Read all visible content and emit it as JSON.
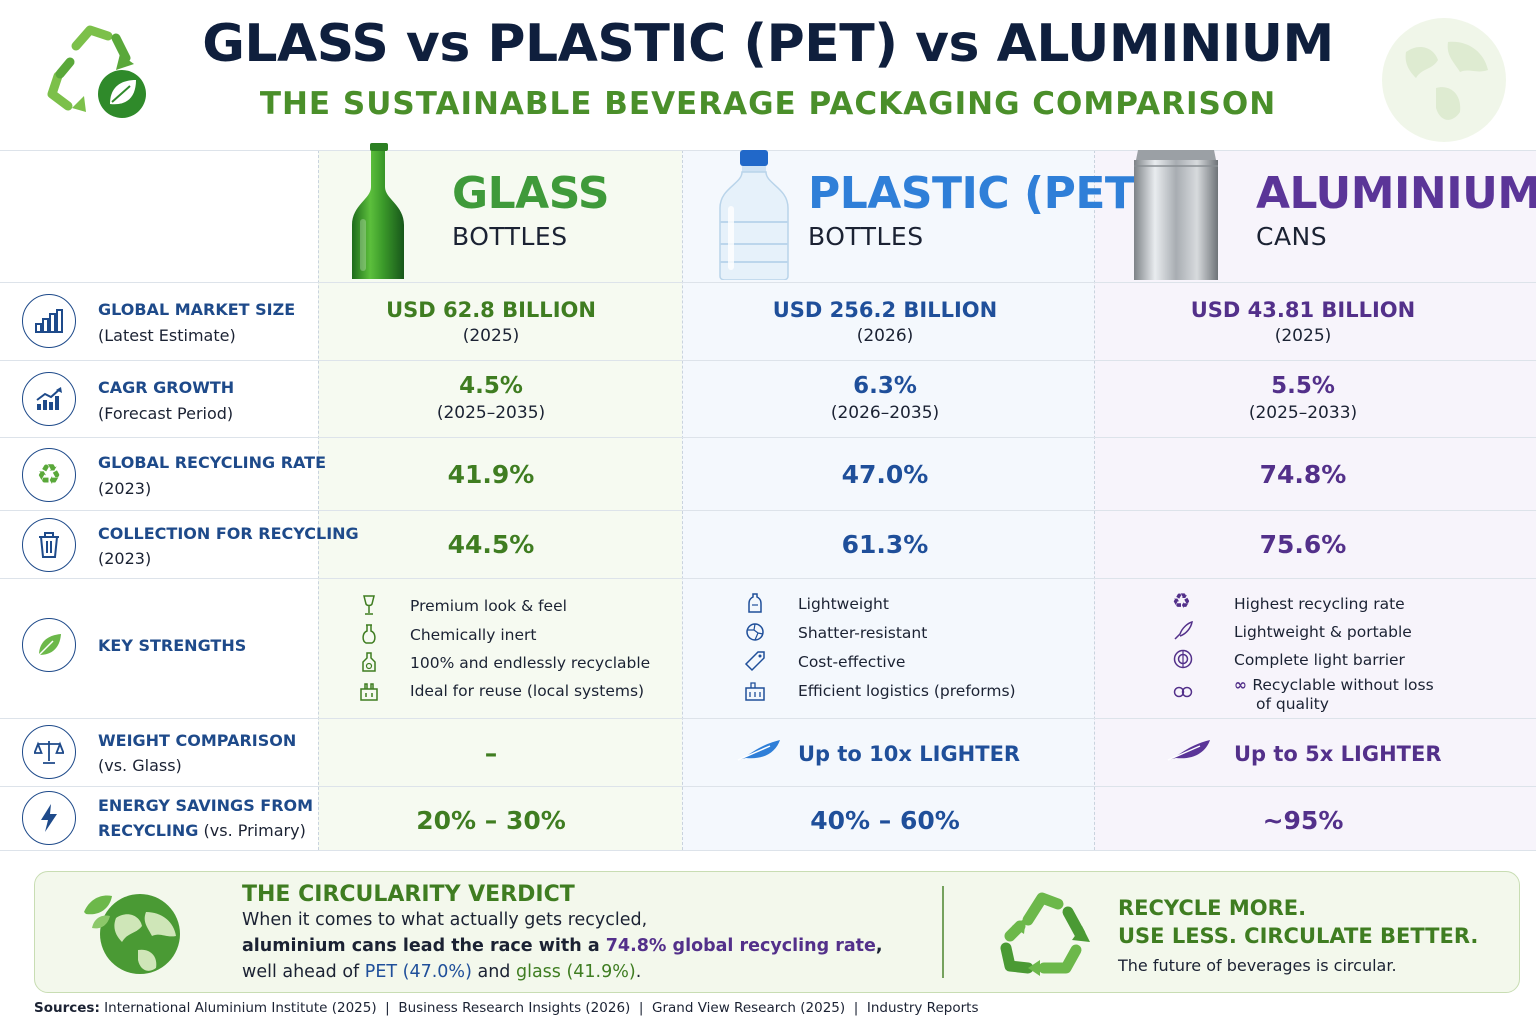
{
  "header": {
    "title": "GLASS vs PLASTIC (PET) vs ALUMINIUM",
    "subtitle": "THE SUSTAINABLE BEVERAGE PACKAGING COMPARISON"
  },
  "columns": {
    "glass": {
      "name": "GLASS",
      "type": "BOTTLES",
      "color": "#3f9a3a"
    },
    "pet": {
      "name": "PLASTIC (PET)",
      "type": "BOTTLES",
      "color": "#2f7fd8"
    },
    "alu": {
      "name": "ALUMINIUM",
      "type": "CANS",
      "color": "#5b3598"
    }
  },
  "rows": {
    "market": {
      "title": "GLOBAL MARKET SIZE",
      "sub": "(Latest Estimate)",
      "icon": "bar-chart-icon",
      "glass": {
        "value": "USD 62.8 BILLION",
        "sub": "(2025)"
      },
      "pet": {
        "value": "USD 256.2 BILLION",
        "sub": "(2026)"
      },
      "alu": {
        "value": "USD 43.81 BILLION",
        "sub": "(2025)"
      }
    },
    "cagr": {
      "title": "CAGR GROWTH",
      "sub": "(Forecast Period)",
      "icon": "growth-chart-icon",
      "glass": {
        "value": "4.5%",
        "sub": "(2025–2035)"
      },
      "pet": {
        "value": "6.3%",
        "sub": "(2026–2035)"
      },
      "alu": {
        "value": "5.5%",
        "sub": "(2025–2033)"
      }
    },
    "recycling": {
      "title": "GLOBAL RECYCLING RATE",
      "sub": "(2023)",
      "icon": "recycle-icon",
      "glass": {
        "value": "41.9%"
      },
      "pet": {
        "value": "47.0%"
      },
      "alu": {
        "value": "74.8%"
      }
    },
    "collection": {
      "title": "COLLECTION FOR RECYCLING",
      "sub": "(2023)",
      "icon": "bin-icon",
      "glass": {
        "value": "44.5%"
      },
      "pet": {
        "value": "61.3%"
      },
      "alu": {
        "value": "75.6%"
      }
    },
    "strengths": {
      "title": "KEY STRENGTHS",
      "icon": "leaf-icon",
      "glass": [
        "Premium look & feel",
        "Chemically inert",
        "100% and endlessly recyclable",
        "Ideal for reuse (local systems)"
      ],
      "pet": [
        "Lightweight",
        "Shatter-resistant",
        "Cost-effective",
        "Efficient logistics (preforms)"
      ],
      "alu": [
        "Highest recycling rate",
        "Lightweight & portable",
        "Complete light barrier",
        "Recyclable without loss",
        "of quality"
      ]
    },
    "weight": {
      "title": "WEIGHT COMPARISON",
      "sub": "(vs. Glass)",
      "icon": "scale-icon",
      "glass": {
        "value": "–"
      },
      "pet": {
        "value": "Up to 10x LIGHTER"
      },
      "alu": {
        "value": "Up to 5x LIGHTER"
      }
    },
    "energy": {
      "title": "ENERGY SAVINGS FROM",
      "sub_bold": "RECYCLING",
      "sub": "(vs. Primary)",
      "icon": "lightning-icon",
      "glass": {
        "value": "20% – 30%"
      },
      "pet": {
        "value": "40% – 60%"
      },
      "alu": {
        "value": "~95%"
      }
    }
  },
  "verdict": {
    "title": "THE CIRCULARITY VERDICT",
    "line1": "When it comes to what actually gets recycled,",
    "line2_a": "aluminium cans lead the race with a ",
    "line2_b": "74.8% global recycling rate",
    "line2_c": ",",
    "line3_a": "well ahead of ",
    "line3_b": "PET (47.0%)",
    "line3_c": " and ",
    "line3_d": "glass (41.9%)",
    "line3_e": ".",
    "cta1": "RECYCLE MORE.",
    "cta2": "USE LESS. CIRCULATE BETTER.",
    "cta_sub": "The future of beverages is circular."
  },
  "sources": {
    "label": "Sources:",
    "text": "International Aluminium Institute (2025)  |  Business Research Insights (2026)  |  Grand View Research (2025)  |  Industry Reports"
  }
}
